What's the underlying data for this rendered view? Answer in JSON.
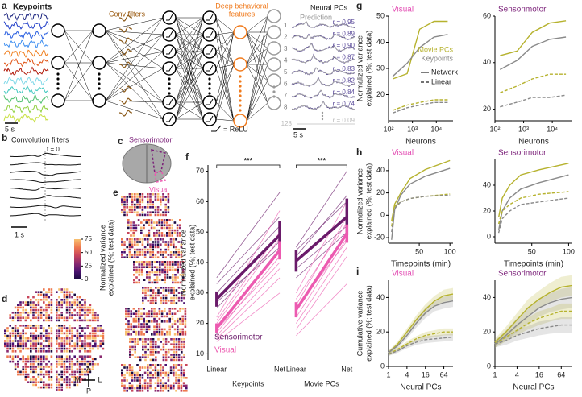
{
  "panel_labels": {
    "a": "a",
    "b": "b",
    "c": "c",
    "d": "d",
    "e": "e",
    "f": "f",
    "g": "g",
    "h": "h",
    "i": "i"
  },
  "panel_a": {
    "keypoints": "Keypoints",
    "conv": "Conv filters",
    "features": [
      "Deep behavioral",
      "features"
    ],
    "neural": "Neural PCs",
    "prediction": "Prediction",
    "scale_left": "5 s",
    "scale_right": "5 s",
    "relu": "= ReLU",
    "pcs": [
      "1",
      "2",
      "3",
      "4",
      "5",
      "6",
      "7",
      "8",
      "128"
    ],
    "r": [
      "r = 0.95",
      "r = 0.89",
      "r = 0.90",
      "r = 0.87",
      "r = 0.83",
      "r = 0.82",
      "r = 0.84",
      "r = 0.74",
      "r = 0.09"
    ]
  },
  "panel_b": {
    "title": "Convolution filters",
    "t0": "t = 0",
    "scale": "1 s"
  },
  "colorbar": {
    "label": [
      "Normalized variance",
      "explained (%; test data)"
    ],
    "lim": [
      0,
      75
    ],
    "ticks": [
      0,
      25,
      50,
      75
    ]
  },
  "panel_c": {
    "sensorimotor": "Sensorimotor",
    "visual": "Visual"
  },
  "compass": {
    "a": "A",
    "m": "M",
    "l": "L",
    "p": "P"
  },
  "chart_data": [
    {
      "type": "slope",
      "ylabel": [
        "Normalized variance",
        "explained (%; test data)"
      ],
      "categories": [
        "Linear",
        "Net",
        "Linear",
        "Net"
      ],
      "groups": [
        "Keypoints",
        "Movie PCs"
      ],
      "significance": [
        "***",
        "***"
      ],
      "ylim": [
        8,
        72
      ],
      "yticks": [
        10,
        20,
        30,
        40,
        50,
        60,
        70
      ],
      "series": [
        {
          "name": "Sensorimotor",
          "color": "#6a1b6a",
          "values": [
            28,
            49,
            40.5,
            55
          ],
          "errors": [
            2.5,
            4.5,
            3.5,
            6
          ],
          "lines": [
            [
              35,
              63,
              45,
              70
            ],
            [
              30,
              52,
              42,
              62
            ],
            [
              27,
              45,
              38,
              52
            ],
            [
              25,
              47,
              35,
              50
            ],
            [
              33,
              55,
              44,
              60
            ]
          ]
        },
        {
          "name": "Visual",
          "color": "#ec5ab0",
          "values": [
            18.5,
            44,
            24.5,
            49.5
          ],
          "errors": [
            1.5,
            3,
            2.5,
            3
          ],
          "lines": [
            [
              22,
              57,
              30,
              60
            ],
            [
              20,
              48,
              26,
              55
            ],
            [
              19,
              44,
              24,
              50
            ],
            [
              17,
              42,
              22,
              48
            ],
            [
              18,
              40,
              25,
              47
            ],
            [
              16,
              38,
              20,
              45
            ],
            [
              15,
              35,
              18,
              42
            ],
            [
              21,
              50,
              28,
              53
            ],
            [
              14,
              30,
              16,
              33
            ]
          ]
        }
      ]
    },
    {
      "type": "line",
      "title": "Visual",
      "title_color": "#e34fb4",
      "xlabel": "Neurons",
      "ylabel": [
        "Normalized variance",
        "explained (%; test data)"
      ],
      "xscale": "log",
      "xlim": [
        100,
        50000
      ],
      "xticks": [
        {
          "value": 100,
          "label": "10²"
        },
        {
          "value": 1000,
          "label": "10³"
        },
        {
          "value": 10000,
          "label": "10⁴"
        }
      ],
      "ylim": [
        10,
        50
      ],
      "yticks": [
        20,
        30,
        40,
        50
      ],
      "x": [
        150,
        600,
        2000,
        8000,
        30000
      ],
      "legend_colors": [
        {
          "name": "Movie PCs",
          "color": "#b6b22e"
        },
        {
          "name": "Keypoints",
          "color": "#8a8a8a"
        }
      ],
      "legend_styles": [
        {
          "name": "Network",
          "dash": false
        },
        {
          "name": "Linear",
          "dash": true
        }
      ],
      "series": [
        {
          "color": "#b6b22e",
          "dash": false,
          "values": [
            26,
            28,
            45,
            48,
            48
          ]
        },
        {
          "color": "#8a8a8a",
          "dash": false,
          "values": [
            27,
            32,
            38,
            42,
            43
          ]
        },
        {
          "color": "#b6b22e",
          "dash": true,
          "values": [
            14,
            16,
            17,
            18,
            18
          ]
        },
        {
          "color": "#8a8a8a",
          "dash": true,
          "values": [
            13,
            15,
            16,
            17,
            17
          ]
        }
      ]
    },
    {
      "type": "line",
      "title": "Sensorimotor",
      "title_color": "#7a1f78",
      "xlabel": "Neurons",
      "xscale": "log",
      "xlim": [
        100,
        50000
      ],
      "xticks": [
        {
          "value": 100,
          "label": "10²"
        },
        {
          "value": 1000,
          "label": "10³"
        },
        {
          "value": 10000,
          "label": "10⁴"
        }
      ],
      "ylim": [
        15,
        60
      ],
      "yticks": [
        20,
        40,
        60
      ],
      "x": [
        150,
        600,
        2000,
        8000,
        30000
      ],
      "series": [
        {
          "color": "#b6b22e",
          "dash": false,
          "values": [
            43,
            45,
            53,
            57,
            58
          ]
        },
        {
          "color": "#8a8a8a",
          "dash": false,
          "values": [
            37,
            41,
            47,
            50,
            51
          ]
        },
        {
          "color": "#b6b22e",
          "dash": true,
          "values": [
            27,
            30,
            33,
            35,
            35
          ]
        },
        {
          "color": "#8a8a8a",
          "dash": true,
          "values": [
            21,
            23,
            25,
            25,
            26
          ]
        }
      ]
    },
    {
      "type": "line",
      "title": "Visual",
      "title_color": "#e34fb4",
      "xlabel": "Timepoints (min)",
      "ylabel": [
        "Normalized variance",
        "explained (%; test data)"
      ],
      "xscale": "linear",
      "xlim": [
        0,
        105
      ],
      "xticks": [
        50,
        100
      ],
      "ylim": [
        -25,
        50
      ],
      "yticks": [
        -20,
        0,
        20,
        40
      ],
      "x": [
        5,
        10,
        20,
        35,
        60,
        100
      ],
      "series": [
        {
          "color": "#b6b22e",
          "dash": false,
          "values": [
            -5,
            10,
            20,
            33,
            41,
            49
          ]
        },
        {
          "color": "#8a8a8a",
          "dash": false,
          "values": [
            -22,
            5,
            18,
            28,
            35,
            42
          ]
        },
        {
          "color": "#b6b22e",
          "dash": true,
          "values": [
            -10,
            8,
            12,
            15,
            17,
            19
          ]
        },
        {
          "color": "#8a8a8a",
          "dash": true,
          "values": [
            -15,
            6,
            12,
            15,
            17,
            18
          ]
        }
      ]
    },
    {
      "type": "line",
      "title": "Sensorimotor",
      "title_color": "#7a1f78",
      "xlabel": "Timepoints (min)",
      "xscale": "linear",
      "xlim": [
        0,
        105
      ],
      "xticks": [
        50,
        100
      ],
      "ylim": [
        -5,
        60
      ],
      "yticks": [
        0,
        20,
        40
      ],
      "x": [
        5,
        10,
        20,
        35,
        60,
        100
      ],
      "series": [
        {
          "color": "#b6b22e",
          "dash": false,
          "values": [
            15,
            30,
            40,
            48,
            52,
            57
          ]
        },
        {
          "color": "#8a8a8a",
          "dash": false,
          "values": [
            5,
            20,
            30,
            37,
            42,
            48
          ]
        },
        {
          "color": "#b6b22e",
          "dash": true,
          "values": [
            10,
            20,
            25,
            30,
            33,
            35
          ]
        },
        {
          "color": "#8a8a8a",
          "dash": true,
          "values": [
            3,
            14,
            20,
            25,
            27,
            30
          ]
        }
      ]
    },
    {
      "type": "line",
      "title": "Visual",
      "title_color": "#e34fb4",
      "xlabel": "Neural PCs",
      "ylabel": [
        "Cumulative variance",
        "explained (%; test data)"
      ],
      "xscale": "log",
      "xlim": [
        1,
        128
      ],
      "xticks": [
        1,
        4,
        16,
        64
      ],
      "ylim": [
        0,
        50
      ],
      "yticks": [
        0,
        20,
        40
      ],
      "x": [
        1,
        2,
        4,
        8,
        16,
        32,
        64,
        128
      ],
      "series": [
        {
          "color": "#b6b22e",
          "dash": false,
          "values": [
            8,
            13,
            20,
            27,
            33,
            38,
            41,
            42
          ],
          "errors": [
            1,
            1.5,
            2,
            2.5,
            3,
            3,
            3.5,
            3.5
          ]
        },
        {
          "color": "#8a8a8a",
          "dash": false,
          "values": [
            8,
            12,
            18,
            25,
            31,
            35,
            37,
            38
          ],
          "errors": [
            1,
            1.5,
            2,
            2.5,
            3,
            3,
            3.5,
            3.5
          ]
        },
        {
          "color": "#b6b22e",
          "dash": true,
          "values": [
            7,
            10,
            13,
            16,
            18,
            19,
            20,
            20
          ],
          "errors": [
            1,
            1,
            1.5,
            1.5,
            2,
            2,
            2,
            2
          ]
        },
        {
          "color": "#8a8a8a",
          "dash": true,
          "values": [
            7,
            9,
            12,
            14,
            15.5,
            16,
            16.5,
            17
          ],
          "errors": [
            1,
            1,
            1.5,
            1.5,
            2,
            2,
            2,
            2
          ]
        }
      ]
    },
    {
      "type": "line",
      "title": "Sensorimotor",
      "title_color": "#7a1f78",
      "xlabel": "Neural PCs",
      "xscale": "log",
      "xlim": [
        1,
        128
      ],
      "xticks": [
        1,
        4,
        16,
        64
      ],
      "ylim": [
        0,
        50
      ],
      "yticks": [
        0,
        20,
        40
      ],
      "x": [
        1,
        2,
        4,
        8,
        16,
        32,
        64,
        128
      ],
      "series": [
        {
          "color": "#b6b22e",
          "dash": false,
          "values": [
            14,
            20,
            27,
            34,
            39,
            43,
            46,
            47
          ],
          "errors": [
            2,
            3,
            4,
            5,
            5,
            5.5,
            6,
            6
          ]
        },
        {
          "color": "#8a8a8a",
          "dash": false,
          "values": [
            13,
            18,
            24,
            29,
            34,
            37,
            39,
            40
          ],
          "errors": [
            2,
            3,
            4,
            5,
            5,
            5.5,
            6,
            6
          ]
        },
        {
          "color": "#b6b22e",
          "dash": true,
          "values": [
            13,
            17,
            21,
            25,
            28,
            30,
            32,
            32
          ],
          "errors": [
            2,
            2.5,
            3,
            3.5,
            4,
            4,
            4.5,
            4.5
          ]
        },
        {
          "color": "#8a8a8a",
          "dash": true,
          "values": [
            13,
            15,
            18,
            20,
            22,
            23,
            24,
            24
          ],
          "errors": [
            2,
            2.5,
            3,
            3.5,
            4,
            4,
            4.5,
            4.5
          ]
        }
      ]
    }
  ]
}
